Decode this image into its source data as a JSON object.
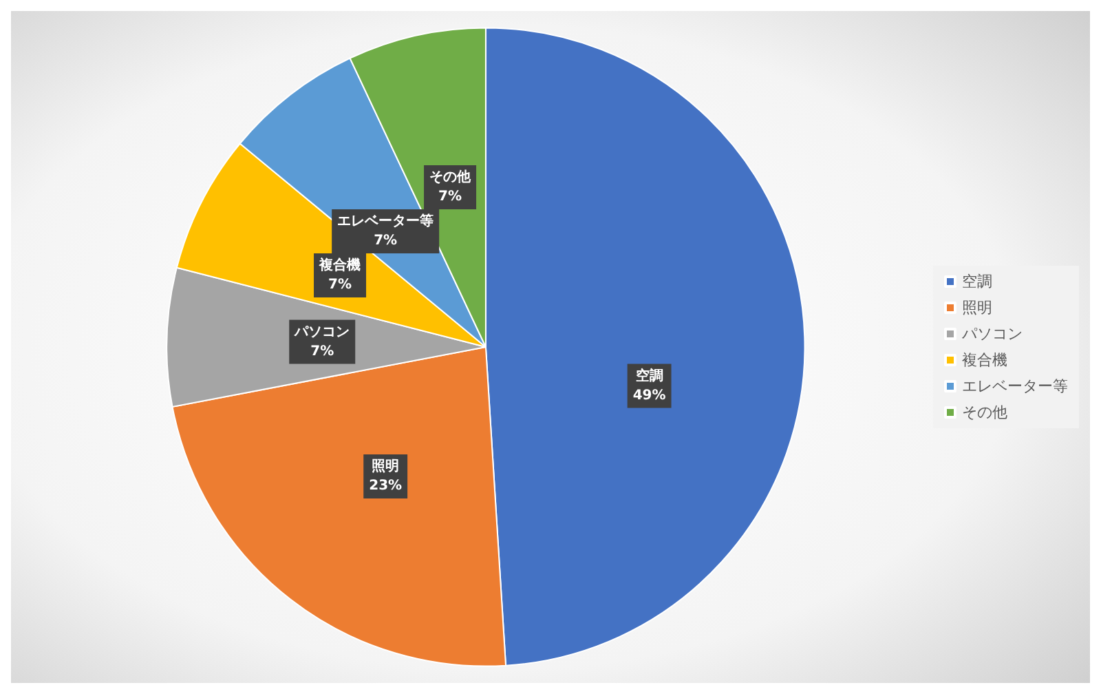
{
  "chart_data": {
    "type": "pie",
    "categories": [
      "空調",
      "照明",
      "パソコン",
      "複合機",
      "エレベーター等",
      "その他"
    ],
    "values": [
      49,
      23,
      7,
      7,
      7,
      7
    ],
    "colors": [
      "#4472c4",
      "#ed7d31",
      "#a5a5a5",
      "#ffc000",
      "#5b9bd5",
      "#70ad47"
    ],
    "value_labels": [
      "49%",
      "23%",
      "7%",
      "7%",
      "7%",
      "7%"
    ],
    "legend": "right"
  }
}
